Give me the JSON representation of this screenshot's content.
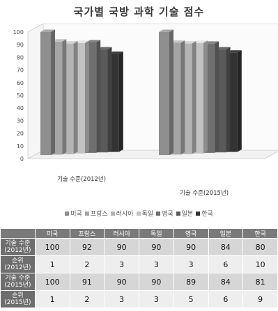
{
  "chart_data": {
    "type": "bar",
    "title": "국가별 국방 과학 기술 점수",
    "categories": [
      "기술 수준(2012년)",
      "기술 수준(2015년)"
    ],
    "series": [
      {
        "name": "미국",
        "values": [
          100,
          100
        ],
        "color": "#8f8f8f"
      },
      {
        "name": "프랑스",
        "values": [
          92,
          91
        ],
        "color": "#a5a5a5"
      },
      {
        "name": "러시아",
        "values": [
          90,
          90
        ],
        "color": "#b4b4b4"
      },
      {
        "name": "독일",
        "values": [
          90,
          90
        ],
        "color": "#c2c2c2"
      },
      {
        "name": "영국",
        "values": [
          90,
          89
        ],
        "color": "#6f6f6f"
      },
      {
        "name": "일본",
        "values": [
          84,
          84
        ],
        "color": "#5a5a5a"
      },
      {
        "name": "한국",
        "values": [
          80,
          81
        ],
        "color": "#333333"
      }
    ],
    "ylim": [
      0,
      100
    ],
    "yticks": [
      0,
      10,
      20,
      30,
      40,
      50,
      60,
      70,
      80,
      90,
      100
    ],
    "legend": "bottom",
    "grid": false
  },
  "table": {
    "header": [
      "",
      "미국",
      "프랑스",
      "러시아",
      "독일",
      "영국",
      "일본",
      "한국"
    ],
    "rows": [
      {
        "label": [
          "기술 수준",
          "(2012년)"
        ],
        "values": [
          "100",
          "92",
          "90",
          "90",
          "90",
          "84",
          "80"
        ]
      },
      {
        "label": [
          "순위",
          "(2012년)"
        ],
        "values": [
          "1",
          "2",
          "3",
          "3",
          "3",
          "6",
          "10"
        ]
      },
      {
        "label": [
          "기술 수준",
          "(2015년)"
        ],
        "values": [
          "100",
          "91",
          "90",
          "90",
          "89",
          "84",
          "81"
        ]
      },
      {
        "label": [
          "순위",
          "(2015년)"
        ],
        "values": [
          "1",
          "2",
          "3",
          "3",
          "5",
          "6",
          "9"
        ]
      }
    ]
  }
}
